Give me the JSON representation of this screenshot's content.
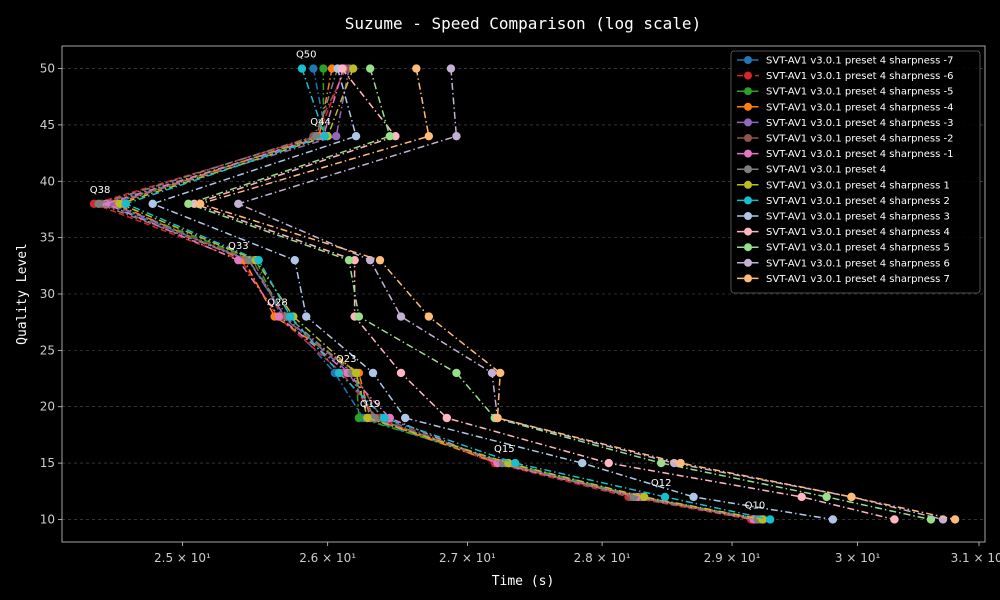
{
  "chart_data": {
    "type": "line",
    "title": "Suzume - Speed Comparison (log scale)",
    "xlabel": "Time (s)",
    "ylabel": "Quality Level",
    "xscale": "log",
    "xlim": [
      24.2,
      31.05
    ],
    "ylim": [
      8,
      52
    ],
    "xticks": [
      {
        "value": 25,
        "label": "2.5 × 10¹"
      },
      {
        "value": 26,
        "label": "2.6 × 10¹"
      },
      {
        "value": 27,
        "label": "2.7 × 10¹"
      },
      {
        "value": 28,
        "label": "2.8 × 10¹"
      },
      {
        "value": 29,
        "label": "2.9 × 10¹"
      },
      {
        "value": 30,
        "label": "3 × 10¹"
      },
      {
        "value": 31,
        "label": "3.1 × 10¹"
      }
    ],
    "yticks": [
      10,
      15,
      20,
      25,
      30,
      35,
      40,
      45,
      50
    ],
    "grid": true,
    "legend_position": "top-right",
    "quality_levels": [
      50,
      44,
      38,
      33,
      28,
      23,
      19,
      15,
      12,
      10
    ],
    "annotations": [
      {
        "text": "Q50",
        "x": 25.85,
        "y": 50
      },
      {
        "text": "Q44",
        "x": 25.95,
        "y": 44
      },
      {
        "text": "Q38",
        "x": 24.45,
        "y": 38
      },
      {
        "text": "Q33",
        "x": 25.38,
        "y": 33
      },
      {
        "text": "Q28",
        "x": 25.65,
        "y": 28
      },
      {
        "text": "Q23",
        "x": 26.13,
        "y": 23
      },
      {
        "text": "Q19",
        "x": 26.3,
        "y": 19
      },
      {
        "text": "Q15",
        "x": 27.27,
        "y": 15
      },
      {
        "text": "Q12",
        "x": 28.45,
        "y": 12
      },
      {
        "text": "Q10",
        "x": 29.18,
        "y": 10
      }
    ],
    "series": [
      {
        "name": "SVT-AV1 v3.0.1 preset 4 sharpness -7",
        "color": "#1f77b4",
        "dash": "dashdot",
        "x": [
          25.9,
          25.99,
          24.5,
          25.45,
          25.7,
          26.05,
          26.25,
          27.25,
          28.3,
          29.25
        ]
      },
      {
        "name": "SVT-AV1 v3.0.1 preset 4 sharpness -6",
        "color": "#d62728",
        "dash": "dashed",
        "x": [
          26.12,
          25.93,
          24.41,
          25.4,
          25.65,
          26.1,
          26.35,
          27.2,
          28.2,
          29.15
        ]
      },
      {
        "name": "SVT-AV1 v3.0.1 preset 4 sharpness -5",
        "color": "#2ca02c",
        "dash": "dashdot",
        "x": [
          25.97,
          25.97,
          24.52,
          25.5,
          25.68,
          26.2,
          26.22,
          27.3,
          28.3,
          29.2
        ]
      },
      {
        "name": "SVT-AV1 v3.0.1 preset 4 sharpness -4",
        "color": "#ff7f0e",
        "dash": "dashdot",
        "x": [
          26.03,
          25.94,
          24.55,
          25.42,
          25.63,
          26.22,
          26.3,
          27.22,
          28.28,
          29.22
        ]
      },
      {
        "name": "SVT-AV1 v3.0.1 preset 4 sharpness -3",
        "color": "#9467bd",
        "dash": "dashdot",
        "x": [
          26.15,
          26.06,
          24.52,
          25.45,
          25.7,
          26.15,
          26.32,
          27.28,
          28.3,
          29.18
        ]
      },
      {
        "name": "SVT-AV1 v3.0.1 preset 4 sharpness -2",
        "color": "#8c564b",
        "dash": "dashdot",
        "x": [
          26.13,
          25.9,
          24.46,
          25.48,
          25.68,
          26.18,
          26.38,
          27.25,
          28.22,
          29.22
        ]
      },
      {
        "name": "SVT-AV1 v3.0.1 preset 4 sharpness -1",
        "color": "#e377c2",
        "dash": "dashdot",
        "x": [
          26.11,
          25.97,
          24.49,
          25.38,
          25.66,
          26.14,
          26.44,
          27.22,
          28.26,
          29.17
        ]
      },
      {
        "name": "SVT-AV1 v3.0.1 preset 4",
        "color": "#7f7f7f",
        "dash": "dashdot",
        "x": [
          26.07,
          25.92,
          24.44,
          25.45,
          25.72,
          26.17,
          26.33,
          27.26,
          28.24,
          29.2
        ]
      },
      {
        "name": "SVT-AV1 v3.0.1 preset 4 sharpness 1",
        "color": "#bcbd22",
        "dash": "dashdot",
        "x": [
          26.18,
          26.0,
          24.58,
          25.5,
          25.76,
          26.2,
          26.28,
          27.3,
          28.32,
          29.24
        ]
      },
      {
        "name": "SVT-AV1 v3.0.1 preset 4 sharpness 2",
        "color": "#17becf",
        "dash": "dashdot",
        "x": [
          25.82,
          25.98,
          24.62,
          25.52,
          25.74,
          26.08,
          26.4,
          27.35,
          28.48,
          29.3
        ]
      },
      {
        "name": "SVT-AV1 v3.0.1 preset 4 sharpness 3",
        "color": "#aec7e8",
        "dash": "dashdot",
        "x": [
          26.07,
          26.2,
          24.8,
          25.77,
          25.85,
          26.32,
          26.55,
          27.85,
          28.7,
          29.8
        ]
      },
      {
        "name": "SVT-AV1 v3.0.1 preset 4 sharpness 4",
        "color": "#ffb6c1",
        "dash": "dashdot",
        "x": [
          26.1,
          26.48,
          25.08,
          26.19,
          26.19,
          26.52,
          26.85,
          28.05,
          29.55,
          30.3
        ]
      },
      {
        "name": "SVT-AV1 v3.0.1 preset 4 sharpness 5",
        "color": "#98df8a",
        "dash": "dashdot",
        "x": [
          26.3,
          26.44,
          25.04,
          26.15,
          26.22,
          26.92,
          27.2,
          28.45,
          29.75,
          30.6
        ]
      },
      {
        "name": "SVT-AV1 v3.0.1 preset 4 sharpness 6",
        "color": "#c5b0d5",
        "dash": "dashdot",
        "x": [
          26.88,
          26.92,
          25.38,
          26.3,
          26.52,
          27.18,
          27.22,
          28.55,
          29.95,
          30.7
        ]
      },
      {
        "name": "SVT-AV1 v3.0.1 preset 4 sharpness 7",
        "color": "#ffbb78",
        "dash": "dashdot",
        "x": [
          26.63,
          26.72,
          25.12,
          26.37,
          26.72,
          27.24,
          27.22,
          28.6,
          29.95,
          30.8
        ]
      }
    ]
  }
}
